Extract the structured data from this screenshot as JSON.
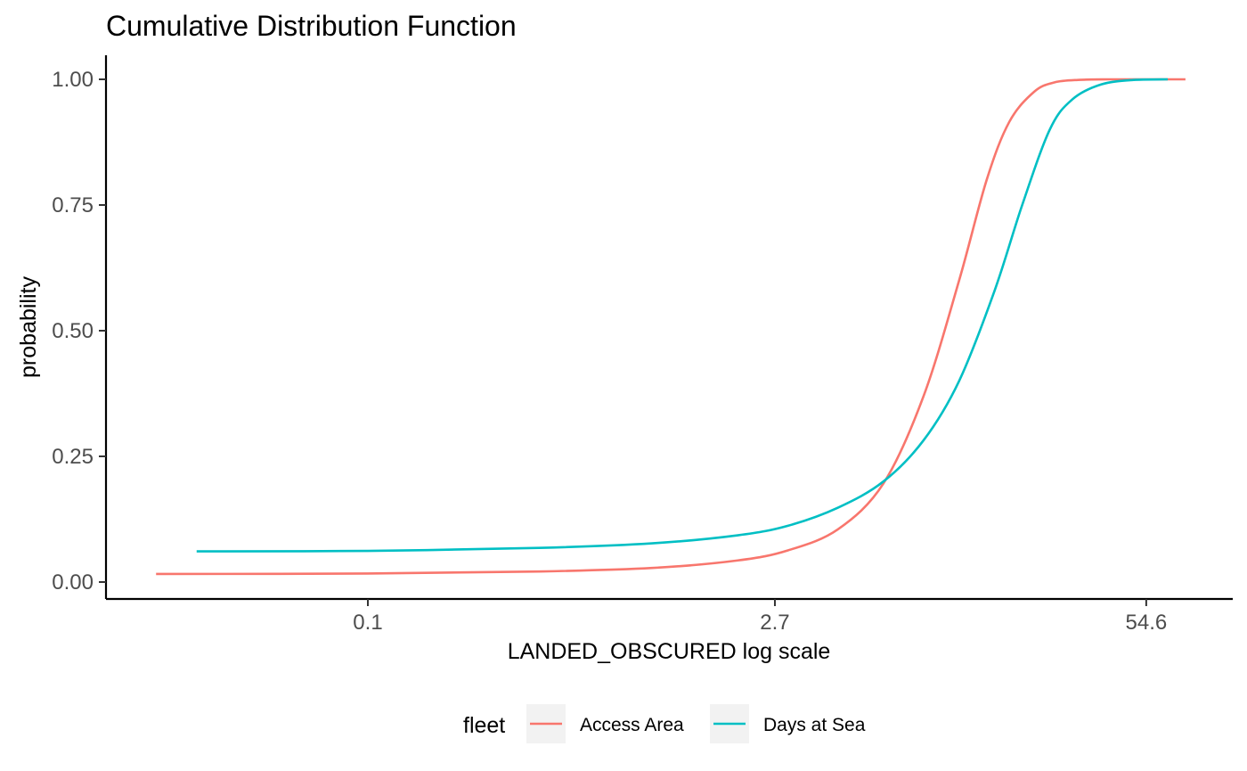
{
  "chart_data": {
    "type": "line",
    "title": "Cumulative Distribution Function",
    "xlabel": "LANDED_OBSCURED  log scale",
    "ylabel": "probability",
    "x_scale": "log",
    "xlim": [
      0.012,
      110
    ],
    "ylim": [
      0,
      1
    ],
    "x_ticks": [
      {
        "value": 0.1,
        "label": "0.1"
      },
      {
        "value": 2.7,
        "label": "2.7"
      },
      {
        "value": 54.6,
        "label": "54.6"
      }
    ],
    "y_ticks": [
      {
        "value": 0,
        "label": "0.00"
      },
      {
        "value": 0.25,
        "label": "0.25"
      },
      {
        "value": 0.5,
        "label": "0.50"
      },
      {
        "value": 0.75,
        "label": "0.75"
      },
      {
        "value": 1,
        "label": "1.00"
      }
    ],
    "grid": false,
    "legend": {
      "title": "fleet",
      "position": "bottom"
    },
    "series": [
      {
        "name": "Access Area",
        "color": "#F8766D",
        "x": [
          0.018,
          0.1,
          0.4,
          1.0,
          2.0,
          3.0,
          4.5,
          6.5,
          9.0,
          12.0,
          15.0,
          18.0,
          22.0,
          26.0,
          32.0,
          40.0,
          55.0,
          75.0
        ],
        "y": [
          0.016,
          0.017,
          0.021,
          0.028,
          0.043,
          0.063,
          0.105,
          0.196,
          0.37,
          0.6,
          0.8,
          0.915,
          0.975,
          0.994,
          0.999,
          1.0,
          1.0,
          1.0
        ]
      },
      {
        "name": "Days at Sea",
        "color": "#00BFC4",
        "x": [
          0.025,
          0.1,
          0.4,
          1.0,
          2.0,
          3.0,
          4.5,
          6.5,
          9.0,
          12.0,
          16.0,
          20.0,
          25.0,
          30.0,
          38.0,
          50.0,
          65.0
        ],
        "y": [
          0.061,
          0.062,
          0.068,
          0.077,
          0.093,
          0.112,
          0.148,
          0.2,
          0.282,
          0.4,
          0.58,
          0.75,
          0.9,
          0.96,
          0.99,
          0.999,
          1.0
        ]
      }
    ]
  }
}
